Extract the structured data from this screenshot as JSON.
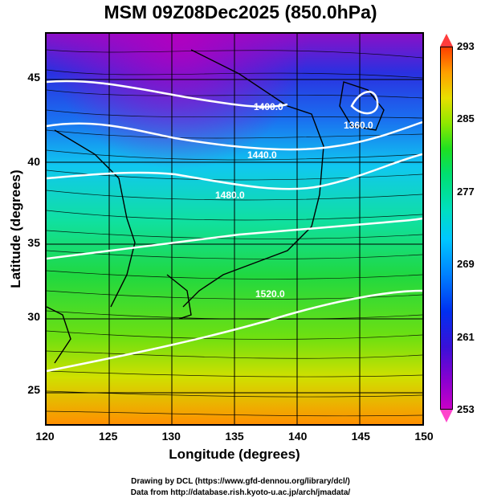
{
  "title": "MSM 09Z08Dec2025 (850.0hPa)",
  "xaxis": {
    "label": "Longitude (degrees)",
    "ticks": [
      "120",
      "125",
      "130",
      "135",
      "140",
      "145",
      "150"
    ],
    "range": [
      120,
      150
    ]
  },
  "yaxis": {
    "label": "Latitude  (degrees)",
    "ticks": [
      "25",
      "30",
      "35",
      "40",
      "45"
    ],
    "range": [
      22.4,
      47.6
    ]
  },
  "colorbar": {
    "ticks": [
      "293",
      "285",
      "277",
      "269",
      "261",
      "253"
    ],
    "range": [
      253,
      293
    ]
  },
  "contours": [
    {
      "label": "1400.0"
    },
    {
      "label": "1440.0"
    },
    {
      "label": "1480.0"
    },
    {
      "label": "1360.0"
    },
    {
      "label": "1520.0"
    }
  ],
  "credits": {
    "line1": "Drawing by DCL (https://www.gfd-dennou.org/library/dcl/)",
    "line2": "Data from http://database.rish.kyoto-u.ac.jp/arch/jmadata/"
  }
}
